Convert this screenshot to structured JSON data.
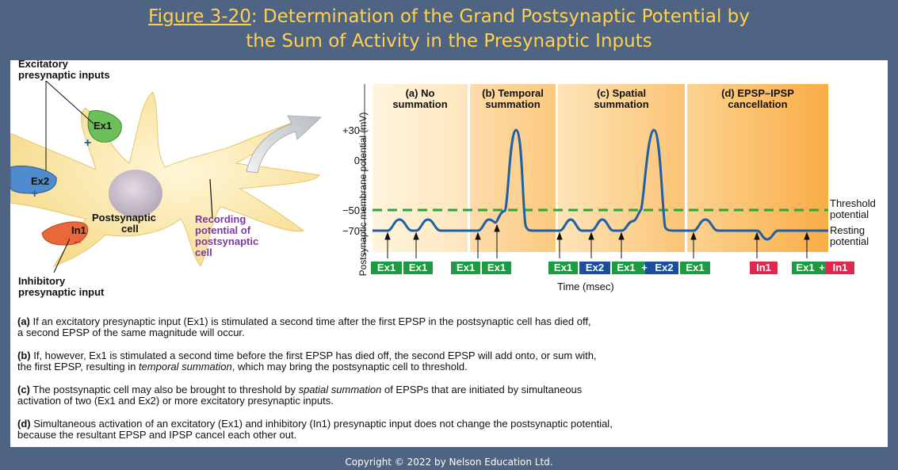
{
  "title": {
    "figure_ref": "Figure 3-20",
    "line1_rest": ": Determination of the Grand Postsynaptic Potential by",
    "line2": "the Sum of Activity in the Presynaptic Inputs"
  },
  "cell_diagram": {
    "excitatory_label_1": "Excitatory",
    "excitatory_label_2": "presynaptic inputs",
    "ex1": "Ex1",
    "ex2": "Ex2",
    "in1": "In1",
    "plus": "+",
    "minus": "−",
    "postsynaptic_1": "Postsynaptic",
    "postsynaptic_2": "cell",
    "recording_1": "Recording",
    "recording_2": "potential of",
    "recording_3": "postsynaptic",
    "recording_4": "cell",
    "inhibitory_1": "Inhibitory",
    "inhibitory_2": "presynaptic input"
  },
  "graph": {
    "y_axis_label": "Postsynaptic membrane potential (mV)",
    "y_ticks": [
      "+30",
      "0",
      "−50",
      "−70"
    ],
    "x_axis_label": "Time (msec)",
    "sections": [
      {
        "line1": "(a) No",
        "line2": "summation"
      },
      {
        "line1": "(b) Temporal",
        "line2": "summation"
      },
      {
        "line1": "(c) Spatial",
        "line2": "summation"
      },
      {
        "line1": "(d) EPSP–IPSP",
        "line2": "cancellation"
      }
    ],
    "threshold_1": "Threshold",
    "threshold_2": "potential",
    "resting_1": "Resting",
    "resting_2": "potential",
    "stim_labels": [
      "Ex1",
      "Ex1",
      "Ex1",
      "Ex1",
      "Ex1",
      "Ex2",
      "Ex1",
      "+",
      "Ex2",
      "Ex1",
      "In1",
      "Ex1",
      "+",
      "In1"
    ]
  },
  "captions": {
    "a_tag": "(a)",
    "a_text_1": " If an excitatory presynaptic input (Ex1) is stimulated a second time after the first EPSP in the postsynaptic cell has died off,",
    "a_text_2": "a second EPSP of the same magnitude will occur.",
    "b_tag": "(b)",
    "b_text_1": " If, however, Ex1 is stimulated a second time before the first EPSP has died off, the second EPSP will add onto, or sum with,",
    "b_text_2a": "the first EPSP, resulting in ",
    "b_text_2em": "temporal summation",
    "b_text_2b": ", which may bring the postsynaptic cell to threshold.",
    "c_tag": "(c)",
    "c_text_1a": " The postsynaptic cell may also be brought to threshold by ",
    "c_text_1em": "spatial summation",
    "c_text_1b": " of EPSPs that are initiated by simultaneous",
    "c_text_2": "activation of two (Ex1 and Ex2) or more excitatory presynaptic inputs.",
    "d_tag": "(d)",
    "d_text_1": " Simultaneous activation of an excitatory (Ex1) and inhibitory (In1) presynaptic input does not change the postsynaptic potential,",
    "d_text_2": "because the resultant EPSP and IPSP cancel each other out."
  },
  "footer": "Copyright © 2022 by Nelson Education Ltd.",
  "colors": {
    "header_bg": "#4f6382",
    "title": "#ffd24d",
    "trace": "#1f5fa6",
    "threshold": "#2aa63a",
    "ex_box": "#1e9a43",
    "ex2_box": "#1b4f9c",
    "in_box": "#e0284f",
    "recording_text": "#7b3b9b"
  }
}
